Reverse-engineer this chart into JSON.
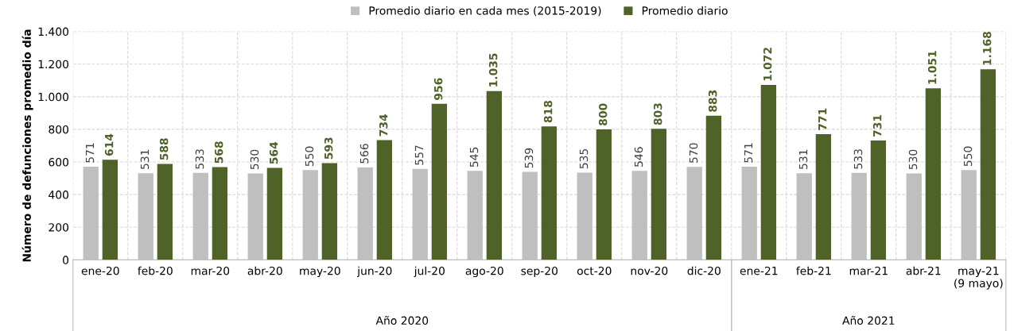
{
  "chart_data": {
    "type": "bar",
    "ylabel": "Número de defunciones promedio día",
    "categories": [
      "ene-20",
      "feb-20",
      "mar-20",
      "abr-20",
      "may-20",
      "jun-20",
      "jul-20",
      "ago-20",
      "sep-20",
      "oct-20",
      "nov-20",
      "dic-20",
      "ene-21",
      "feb-21",
      "mar-21",
      "abr-21",
      "may-21\n(9 mayo)"
    ],
    "series": [
      {
        "name": "Promedio diario en cada mes (2015-2019)",
        "color": "#bfbfbf",
        "values": [
          571,
          531,
          533,
          530,
          550,
          566,
          557,
          545,
          539,
          535,
          546,
          570,
          571,
          531,
          533,
          530,
          550
        ],
        "value_labels": [
          "571",
          "531",
          "533",
          "530",
          "550",
          "566",
          "557",
          "545",
          "539",
          "535",
          "546",
          "570",
          "571",
          "531",
          "533",
          "530",
          "550"
        ]
      },
      {
        "name": "Promedio diario",
        "color": "#4f6228",
        "values": [
          614,
          588,
          568,
          564,
          593,
          734,
          956,
          1035,
          818,
          800,
          803,
          883,
          1072,
          771,
          731,
          1051,
          1168
        ],
        "value_labels": [
          "614",
          "588",
          "568",
          "564",
          "593",
          "734",
          "956",
          "1.035",
          "818",
          "800",
          "803",
          "883",
          "1.072",
          "771",
          "731",
          "1.051",
          "1.168"
        ]
      }
    ],
    "ylim": [
      0,
      1400
    ],
    "yticks": [
      0,
      200,
      400,
      600,
      800,
      {
        "value": 1000,
        "label": "1.000"
      },
      {
        "value": 1200,
        "label": "1.200"
      },
      {
        "value": 1400,
        "label": "1.400"
      }
    ],
    "grid": true,
    "legend": "top",
    "annotations": [
      "Año 2020",
      "Año 2021"
    ]
  }
}
